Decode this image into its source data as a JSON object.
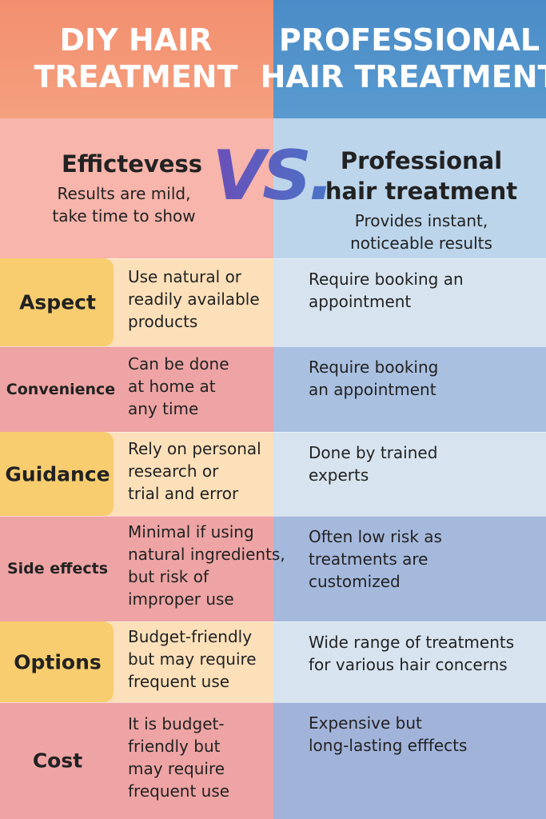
{
  "header": {
    "left_title": [
      "DIY HAIR",
      "TREATMENT"
    ],
    "right_title": [
      "PROFESSIONAL",
      "HAIR TREATMENT"
    ]
  },
  "vs": "VS.",
  "intro": {
    "left": {
      "heading": [
        "Effictevess"
      ],
      "text": [
        "Results are mild,",
        "take time to show"
      ]
    },
    "right": {
      "heading": [
        "Professional",
        "hair treatment"
      ],
      "text": [
        "Provides instant,",
        "noticeable results"
      ]
    }
  },
  "rows": [
    {
      "aspect": "Aspect",
      "diy": [
        "Use natural or",
        "readily available",
        "products"
      ],
      "pro": [
        "Require booking an",
        "appointment"
      ]
    },
    {
      "aspect": "Convenience",
      "diy": [
        "Can be done",
        "at home at",
        "any time"
      ],
      "pro": [
        "Require booking",
        "an appointment"
      ]
    },
    {
      "aspect": "Guidance",
      "diy": [
        "Rely on personal",
        "research or",
        "trial and error"
      ],
      "pro": [
        "Done by trained",
        "experts"
      ]
    },
    {
      "aspect": "Side effects",
      "diy": [
        "Minimal if using",
        "natural ingredients,",
        "but risk of",
        "improper use"
      ],
      "pro": [
        "Often low risk as",
        "treatments are",
        "customized"
      ]
    },
    {
      "aspect": "Options",
      "diy": [
        "Budget-friendly",
        "but may require",
        "frequent use"
      ],
      "pro": [
        "Wide range of treatments",
        "for various hair concerns"
      ]
    },
    {
      "aspect": "Cost",
      "diy": [
        "It is budget-",
        "friendly but",
        "may require",
        "frequent use"
      ],
      "pro": [
        "Expensive but",
        "long-lasting efffects"
      ]
    }
  ]
}
